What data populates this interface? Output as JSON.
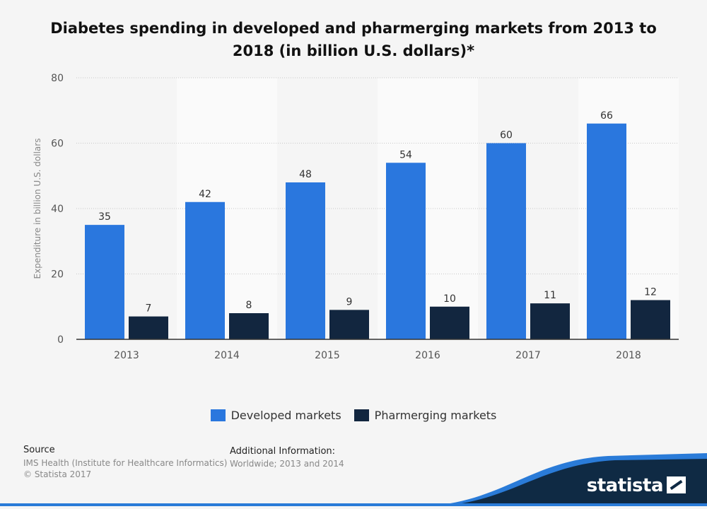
{
  "title": "Diabetes spending in developed and pharmerging markets from 2013 to 2018 (in billion U.S. dollars)*",
  "chart_data": {
    "type": "bar",
    "title": "Diabetes spending in developed and pharmerging markets from 2013 to 2018 (in billion U.S. dollars)*",
    "xlabel": "",
    "ylabel": "Expenditure in billion U.S. dollars",
    "categories": [
      "2013",
      "2014",
      "2015",
      "2016",
      "2017",
      "2018"
    ],
    "series": [
      {
        "name": "Developed markets",
        "values": [
          35,
          42,
          48,
          54,
          60,
          66
        ],
        "color": "#2a77de"
      },
      {
        "name": "Pharmerging markets",
        "values": [
          7,
          8,
          9,
          10,
          11,
          12
        ],
        "color": "#12263f"
      }
    ],
    "ylim": [
      0,
      80
    ],
    "yticks": [
      0,
      20,
      40,
      60,
      80
    ],
    "grid": true,
    "legend": "bottom"
  },
  "legend": {
    "items": [
      {
        "label": "Developed markets",
        "color": "#2a77de"
      },
      {
        "label": "Pharmerging markets",
        "color": "#12263f"
      }
    ]
  },
  "source": {
    "heading": "Source",
    "lines": [
      "IMS Health (Institute for Healthcare Informatics)",
      "© Statista 2017"
    ]
  },
  "additional_info": {
    "heading": "Additional Information:",
    "text": "Worldwide; 2013 and 2014"
  },
  "brand": {
    "name": "statista",
    "color": "#0f2a44",
    "accent": "#2a7bd8"
  }
}
